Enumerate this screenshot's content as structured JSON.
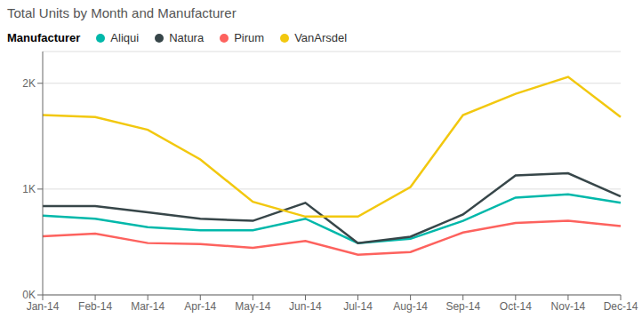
{
  "chart_data": {
    "type": "line",
    "title": "Total Units by Month and Manufacturer",
    "legend_title": "Manufacturer",
    "categories": [
      "Jan-14",
      "Feb-14",
      "Mar-14",
      "Apr-14",
      "May-14",
      "Jun-14",
      "Jul-14",
      "Aug-14",
      "Sep-14",
      "Oct-14",
      "Nov-14",
      "Dec-14"
    ],
    "series": [
      {
        "name": "Aliqui",
        "color": "#01B8AA",
        "values": [
          750,
          720,
          640,
          610,
          610,
          720,
          490,
          530,
          700,
          920,
          950,
          870
        ]
      },
      {
        "name": "Natura",
        "color": "#374649",
        "values": [
          840,
          840,
          780,
          720,
          700,
          870,
          490,
          550,
          760,
          1130,
          1150,
          930
        ]
      },
      {
        "name": "Pirum",
        "color": "#FD625E",
        "values": [
          555,
          580,
          490,
          480,
          445,
          510,
          380,
          405,
          590,
          680,
          700,
          650
        ]
      },
      {
        "name": "VanArsdel",
        "color": "#F2C80F",
        "values": [
          1700,
          1680,
          1560,
          1280,
          880,
          740,
          740,
          1020,
          1700,
          1900,
          2060,
          1680
        ]
      }
    ],
    "ylim": [
      0,
      2300
    ],
    "yticks": [
      {
        "value": 0,
        "label": "0K"
      },
      {
        "value": 1000,
        "label": "1K"
      },
      {
        "value": 2000,
        "label": "2K"
      }
    ],
    "grid": true,
    "legend": "top"
  }
}
